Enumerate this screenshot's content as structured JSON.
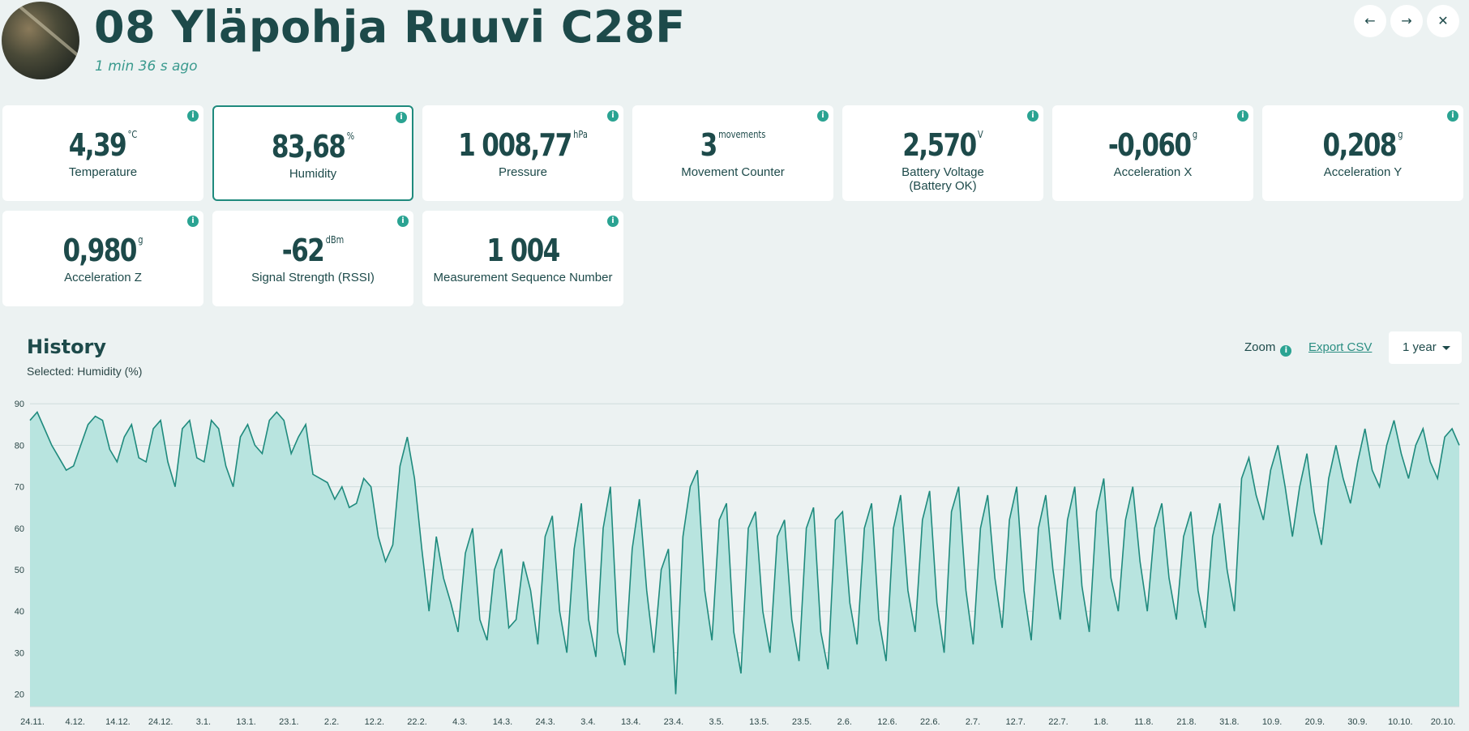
{
  "header": {
    "title": "08 Yläpohja Ruuvi C28F",
    "updated": "1 min 36 s ago",
    "nav": [
      {
        "icon": "arrow-left-icon",
        "glyph": "←"
      },
      {
        "icon": "arrow-right-icon",
        "glyph": "→"
      },
      {
        "icon": "close-icon",
        "glyph": "✕"
      }
    ]
  },
  "cards": [
    {
      "value": "4,39",
      "unit": "°C",
      "label": "Temperature"
    },
    {
      "value": "83,68",
      "unit": "%",
      "label": "Humidity",
      "selected": true
    },
    {
      "value": "1 008,77",
      "unit": "hPa",
      "label": "Pressure"
    },
    {
      "value": "3",
      "unit": "movements",
      "label": "Movement Counter"
    },
    {
      "value": "2,570",
      "unit": "V",
      "label": "Battery Voltage",
      "label2": "(Battery OK)"
    },
    {
      "value": "-0,060",
      "unit": "g",
      "label": "Acceleration X"
    },
    {
      "value": "0,208",
      "unit": "g",
      "label": "Acceleration Y"
    },
    {
      "value": "0,980",
      "unit": "g",
      "label": "Acceleration Z"
    },
    {
      "value": "-62",
      "unit": "dBm",
      "label": "Signal Strength (RSSI)"
    },
    {
      "value": "1 004",
      "unit": "",
      "label": "Measurement Sequence Number"
    }
  ],
  "history": {
    "title": "History",
    "selected": "Selected: Humidity (%)",
    "zoom_label": "Zoom",
    "export_label": "Export CSV",
    "range_label": "1 year"
  },
  "colors": {
    "accent": "#2aa392",
    "line": "#1f8a7d",
    "fill": "#b8e4df",
    "text": "#1d4a4a"
  },
  "chart_data": {
    "type": "area",
    "ylim": [
      17,
      92
    ],
    "yticks": [
      20,
      30,
      40,
      50,
      60,
      70,
      80,
      90
    ],
    "xticks": [
      "24.11.",
      "4.12.",
      "14.12.",
      "24.12.",
      "3.1.",
      "13.1.",
      "23.1.",
      "2.2.",
      "12.2.",
      "22.2.",
      "4.3.",
      "14.3.",
      "24.3.",
      "3.4.",
      "13.4.",
      "23.4.",
      "3.5.",
      "13.5.",
      "23.5.",
      "2.6.",
      "12.6.",
      "22.6.",
      "2.7.",
      "12.7.",
      "22.7.",
      "1.8.",
      "11.8.",
      "21.8.",
      "31.8.",
      "10.9.",
      "20.9.",
      "30.9.",
      "10.10.",
      "20.10."
    ],
    "series": [
      {
        "name": "Humidity",
        "values": [
          86,
          88,
          84,
          80,
          77,
          74,
          75,
          80,
          85,
          87,
          86,
          79,
          76,
          82,
          85,
          77,
          76,
          84,
          86,
          76,
          70,
          84,
          86,
          77,
          76,
          86,
          84,
          75,
          70,
          82,
          85,
          80,
          78,
          86,
          88,
          86,
          78,
          82,
          85,
          73,
          72,
          71,
          67,
          70,
          65,
          66,
          72,
          70,
          58,
          52,
          56,
          75,
          82,
          72,
          55,
          40,
          58,
          48,
          42,
          35,
          54,
          60,
          38,
          33,
          50,
          55,
          36,
          38,
          52,
          45,
          32,
          58,
          63,
          40,
          30,
          55,
          66,
          38,
          29,
          60,
          70,
          35,
          27,
          55,
          67,
          45,
          30,
          50,
          55,
          20,
          58,
          70,
          74,
          45,
          33,
          62,
          66,
          35,
          25,
          60,
          64,
          40,
          30,
          58,
          62,
          38,
          28,
          60,
          65,
          35,
          26,
          62,
          64,
          42,
          32,
          60,
          66,
          38,
          28,
          60,
          68,
          45,
          35,
          62,
          69,
          42,
          30,
          64,
          70,
          45,
          32,
          60,
          68,
          48,
          36,
          62,
          70,
          45,
          33,
          60,
          68,
          50,
          38,
          62,
          70,
          46,
          35,
          64,
          72,
          48,
          40,
          62,
          70,
          52,
          40,
          60,
          66,
          48,
          38,
          58,
          64,
          45,
          36,
          58,
          66,
          50,
          40,
          72,
          77,
          68,
          62,
          74,
          80,
          70,
          58,
          70,
          78,
          64,
          56,
          72,
          80,
          72,
          66,
          76,
          84,
          74,
          70,
          80,
          86,
          78,
          72,
          80,
          84,
          76,
          72,
          82,
          84,
          80
        ]
      }
    ]
  }
}
